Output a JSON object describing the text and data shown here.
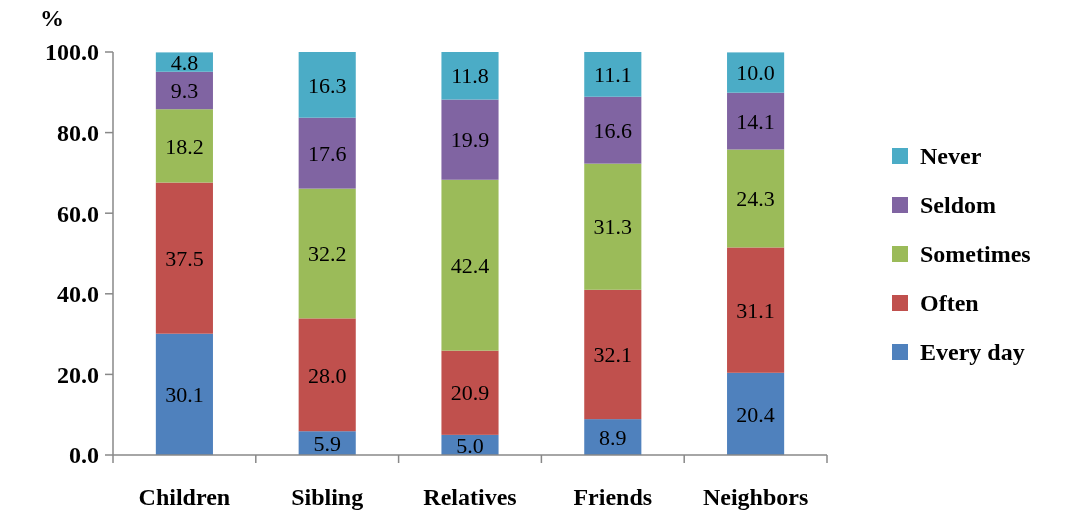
{
  "chart_data": {
    "type": "bar",
    "stacked": true,
    "ylabel": "%",
    "categories": [
      "Children",
      "Sibling",
      "Relatives",
      "Friends",
      "Neighbors"
    ],
    "series": [
      {
        "name": "Every day",
        "color": "#4f81bd",
        "values": [
          30.1,
          5.9,
          5.0,
          8.9,
          20.4
        ],
        "value_labels": [
          "30.1",
          "5.9",
          "5.0",
          "8.9",
          "20.4"
        ]
      },
      {
        "name": "Often",
        "color": "#c0504d",
        "values": [
          37.5,
          28.0,
          20.9,
          32.1,
          31.1
        ],
        "value_labels": [
          "37.5",
          "28.0",
          "20.9",
          "32.1",
          "31.1"
        ]
      },
      {
        "name": "Sometimes",
        "color": "#9bbb59",
        "values": [
          18.2,
          32.2,
          42.4,
          31.3,
          24.3
        ],
        "value_labels": [
          "18.2",
          "32.2",
          "42.4",
          "31.3",
          "24.3"
        ]
      },
      {
        "name": "Seldom",
        "color": "#8064a2",
        "values": [
          9.3,
          17.6,
          19.9,
          16.6,
          14.1
        ],
        "value_labels": [
          "9.3",
          "17.6",
          "19.9",
          "16.6",
          "14.1"
        ]
      },
      {
        "name": "Never",
        "color": "#4bacc6",
        "values": [
          4.8,
          16.3,
          11.8,
          11.1,
          10.0
        ],
        "value_labels": [
          "4.8",
          "16.3",
          "11.8",
          "11.1",
          "10.0"
        ]
      }
    ],
    "ylim": [
      0,
      100
    ],
    "yticks": [
      {
        "value": 0,
        "label": "0.0"
      },
      {
        "value": 20,
        "label": "20.0"
      },
      {
        "value": 40,
        "label": "40.0"
      },
      {
        "value": 60,
        "label": "60.0"
      },
      {
        "value": 80,
        "label": "80.0"
      },
      {
        "value": 100,
        "label": "100.0"
      }
    ],
    "grid": false,
    "legend": "right"
  }
}
